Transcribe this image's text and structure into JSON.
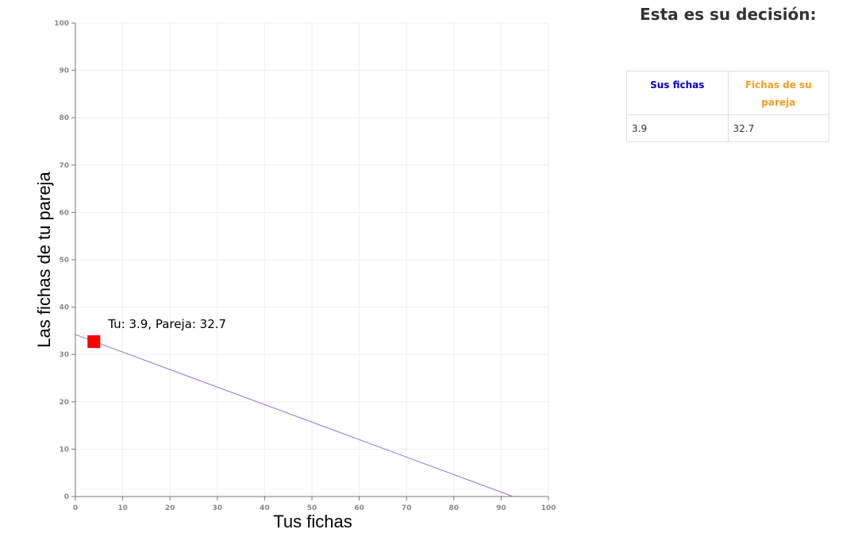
{
  "chart_data": {
    "type": "line",
    "xlabel": "Tus fichas",
    "ylabel": "Las fichas de tu pareja",
    "xlim": [
      0,
      100
    ],
    "ylim": [
      0,
      100
    ],
    "x_ticks": [
      "0",
      "10",
      "20",
      "30",
      "40",
      "50",
      "60",
      "70",
      "80",
      "90",
      "100"
    ],
    "y_ticks": [
      "0",
      "10",
      "20",
      "30",
      "40",
      "50",
      "60",
      "70",
      "80",
      "90",
      "100"
    ],
    "grid": true,
    "budget_line": {
      "x": [
        0,
        92.5
      ],
      "y": [
        34.2,
        0
      ],
      "color": "#9370db"
    },
    "selected_point": {
      "x": 3.9,
      "y": 32.7,
      "color": "#ff0000",
      "label": "Tu: 3.9, Pareja: 32.7"
    }
  },
  "decision": {
    "title": "Esta es su decisión:",
    "headers": [
      "Sus fichas",
      "Fichas de su pareja"
    ],
    "header_colors": [
      "#0000cc",
      "#f0a020"
    ],
    "values": [
      "3.9",
      "32.7"
    ]
  }
}
